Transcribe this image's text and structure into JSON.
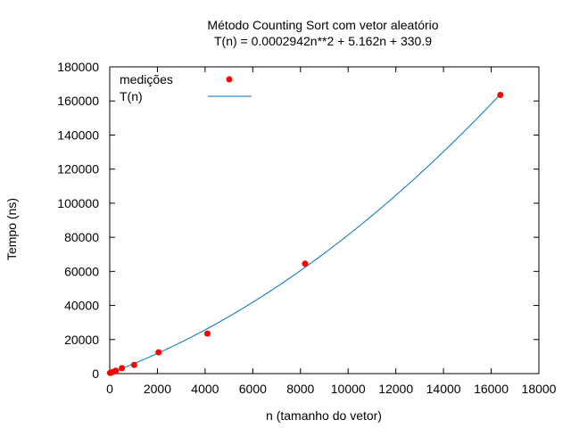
{
  "chart_data": {
    "type": "scatter",
    "title": "Método Counting Sort com vetor aleatório",
    "subtitle": "T(n) = 0.0002942n**2 + 5.162n + 330.9",
    "xlabel": "n (tamanho do vetor)",
    "ylabel": "Tempo (ns)",
    "xlim": [
      0,
      18000
    ],
    "ylim": [
      0,
      180000
    ],
    "xticks": [
      0,
      2000,
      4000,
      6000,
      8000,
      10000,
      12000,
      14000,
      16000,
      18000
    ],
    "yticks": [
      0,
      20000,
      40000,
      60000,
      80000,
      100000,
      120000,
      140000,
      160000,
      180000
    ],
    "grid": false,
    "legend_position": "top-left",
    "series": [
      {
        "name": "medições",
        "type": "scatter",
        "color": "#ff0000",
        "x": [
          16,
          32,
          64,
          128,
          256,
          512,
          1024,
          2048,
          4096,
          8192,
          16384
        ],
        "y": [
          420,
          500,
          680,
          1000,
          1700,
          3200,
          5100,
          12500,
          23500,
          64500,
          163500
        ]
      },
      {
        "name": "T(n)",
        "type": "line",
        "color": "#0072bd",
        "coefficients": {
          "a": 0.0002942,
          "b": 5.162,
          "c": 330.9
        }
      }
    ]
  }
}
